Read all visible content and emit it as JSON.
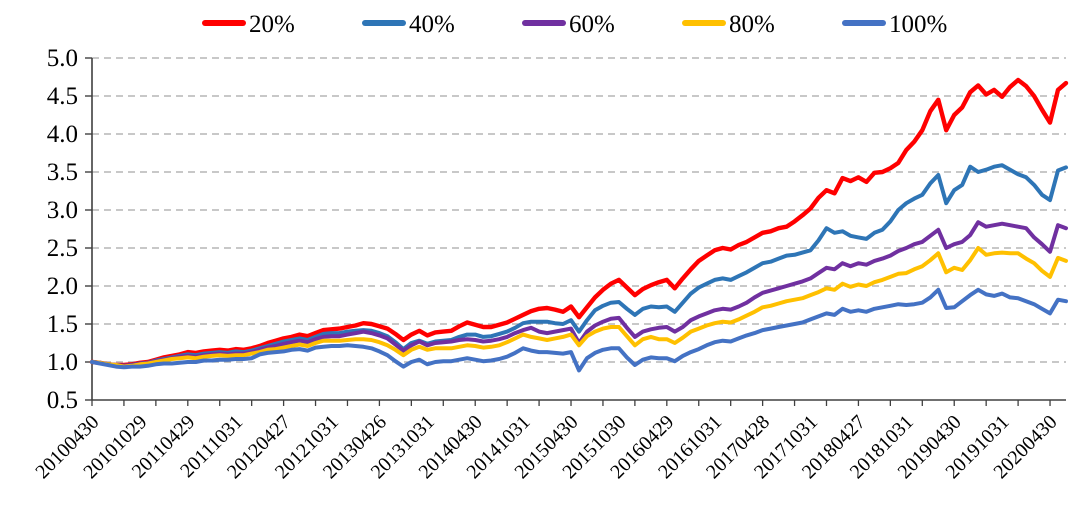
{
  "chart_data": {
    "type": "line",
    "title": "",
    "xlabel": "",
    "ylabel": "",
    "legend_position": "top",
    "grid": "horizontal-dashed",
    "grid_color": "#a6a6a6",
    "axis_color": "#404040",
    "ylim": [
      0.5,
      5.0
    ],
    "y_tick_labels": [
      "5.0",
      "4.5",
      "4.0",
      "3.5",
      "3.0",
      "2.5",
      "2.0",
      "1.5",
      "1.0",
      "0.5"
    ],
    "x_categories": [
      "20100430",
      "20101029",
      "20110429",
      "20111031",
      "20120427",
      "20121031",
      "20130426",
      "20131031",
      "20140430",
      "20141031",
      "20150430",
      "20151030",
      "20160429",
      "20161031",
      "20170428",
      "20171031",
      "20180427",
      "20181031",
      "20190430",
      "20191031",
      "20200430"
    ],
    "x_label_interval": 6,
    "x_tick_interval": 4,
    "n_points": 123,
    "series": [
      {
        "name": "20%",
        "color": "#FF0000",
        "values": [
          1.0,
          0.99,
          0.97,
          0.96,
          0.96,
          0.97,
          0.99,
          1.0,
          1.03,
          1.06,
          1.08,
          1.1,
          1.13,
          1.12,
          1.14,
          1.15,
          1.16,
          1.15,
          1.17,
          1.16,
          1.18,
          1.21,
          1.25,
          1.28,
          1.31,
          1.33,
          1.36,
          1.34,
          1.38,
          1.42,
          1.43,
          1.44,
          1.46,
          1.48,
          1.51,
          1.5,
          1.47,
          1.44,
          1.37,
          1.29,
          1.36,
          1.41,
          1.35,
          1.39,
          1.4,
          1.41,
          1.47,
          1.52,
          1.49,
          1.46,
          1.46,
          1.49,
          1.52,
          1.57,
          1.62,
          1.67,
          1.7,
          1.71,
          1.69,
          1.66,
          1.73,
          1.59,
          1.72,
          1.85,
          1.95,
          2.03,
          2.08,
          1.98,
          1.88,
          1.96,
          2.01,
          2.05,
          2.08,
          1.97,
          2.1,
          2.22,
          2.33,
          2.4,
          2.47,
          2.5,
          2.48,
          2.54,
          2.58,
          2.64,
          2.7,
          2.72,
          2.76,
          2.78,
          2.85,
          2.93,
          3.02,
          3.16,
          3.26,
          3.22,
          3.42,
          3.38,
          3.43,
          3.37,
          3.49,
          3.5,
          3.55,
          3.62,
          3.79,
          3.9,
          4.05,
          4.3,
          4.45,
          4.05,
          4.25,
          4.35,
          4.55,
          4.64,
          4.52,
          4.58,
          4.49,
          4.62,
          4.71,
          4.63,
          4.5,
          4.32,
          4.15,
          4.58,
          4.67
        ]
      },
      {
        "name": "40%",
        "color": "#2E75B6",
        "values": [
          1.0,
          0.99,
          0.97,
          0.96,
          0.95,
          0.96,
          0.98,
          0.99,
          1.02,
          1.04,
          1.06,
          1.08,
          1.1,
          1.09,
          1.11,
          1.12,
          1.13,
          1.12,
          1.14,
          1.13,
          1.15,
          1.18,
          1.21,
          1.24,
          1.27,
          1.29,
          1.31,
          1.29,
          1.33,
          1.37,
          1.38,
          1.38,
          1.4,
          1.41,
          1.42,
          1.41,
          1.38,
          1.34,
          1.26,
          1.17,
          1.25,
          1.28,
          1.24,
          1.27,
          1.28,
          1.29,
          1.33,
          1.36,
          1.36,
          1.33,
          1.34,
          1.37,
          1.4,
          1.45,
          1.51,
          1.53,
          1.53,
          1.53,
          1.51,
          1.5,
          1.55,
          1.4,
          1.55,
          1.68,
          1.74,
          1.78,
          1.79,
          1.7,
          1.62,
          1.7,
          1.73,
          1.72,
          1.73,
          1.66,
          1.78,
          1.9,
          1.98,
          2.03,
          2.08,
          2.1,
          2.08,
          2.13,
          2.18,
          2.24,
          2.3,
          2.32,
          2.36,
          2.4,
          2.41,
          2.44,
          2.47,
          2.6,
          2.76,
          2.7,
          2.72,
          2.66,
          2.64,
          2.62,
          2.7,
          2.74,
          2.85,
          3.0,
          3.09,
          3.15,
          3.2,
          3.35,
          3.46,
          3.09,
          3.26,
          3.33,
          3.57,
          3.5,
          3.53,
          3.57,
          3.59,
          3.53,
          3.47,
          3.43,
          3.33,
          3.2,
          3.13,
          3.52,
          3.56
        ]
      },
      {
        "name": "60%",
        "color": "#7030A0",
        "values": [
          1.0,
          0.99,
          0.97,
          0.96,
          0.95,
          0.96,
          0.98,
          0.99,
          1.01,
          1.03,
          1.05,
          1.07,
          1.08,
          1.07,
          1.09,
          1.1,
          1.11,
          1.1,
          1.11,
          1.11,
          1.13,
          1.16,
          1.19,
          1.21,
          1.24,
          1.26,
          1.28,
          1.26,
          1.3,
          1.33,
          1.34,
          1.34,
          1.36,
          1.38,
          1.4,
          1.38,
          1.35,
          1.31,
          1.23,
          1.15,
          1.22,
          1.27,
          1.22,
          1.25,
          1.26,
          1.27,
          1.29,
          1.3,
          1.29,
          1.27,
          1.28,
          1.3,
          1.33,
          1.38,
          1.42,
          1.45,
          1.4,
          1.38,
          1.4,
          1.42,
          1.44,
          1.25,
          1.4,
          1.48,
          1.53,
          1.57,
          1.58,
          1.45,
          1.33,
          1.4,
          1.43,
          1.45,
          1.46,
          1.4,
          1.46,
          1.55,
          1.6,
          1.64,
          1.68,
          1.7,
          1.69,
          1.73,
          1.78,
          1.85,
          1.91,
          1.94,
          1.97,
          2.0,
          2.03,
          2.06,
          2.1,
          2.17,
          2.24,
          2.22,
          2.3,
          2.26,
          2.3,
          2.28,
          2.33,
          2.36,
          2.4,
          2.46,
          2.5,
          2.55,
          2.58,
          2.66,
          2.74,
          2.5,
          2.55,
          2.58,
          2.67,
          2.84,
          2.78,
          2.8,
          2.82,
          2.8,
          2.78,
          2.76,
          2.64,
          2.55,
          2.45,
          2.8,
          2.76
        ]
      },
      {
        "name": "80%",
        "color": "#FFC000",
        "values": [
          1.0,
          0.99,
          0.97,
          0.96,
          0.94,
          0.95,
          0.97,
          0.98,
          1.0,
          1.02,
          1.04,
          1.05,
          1.06,
          1.05,
          1.07,
          1.08,
          1.09,
          1.08,
          1.09,
          1.09,
          1.11,
          1.13,
          1.16,
          1.17,
          1.19,
          1.21,
          1.23,
          1.21,
          1.25,
          1.28,
          1.28,
          1.28,
          1.29,
          1.3,
          1.3,
          1.29,
          1.26,
          1.22,
          1.16,
          1.09,
          1.16,
          1.2,
          1.16,
          1.18,
          1.18,
          1.18,
          1.2,
          1.22,
          1.21,
          1.19,
          1.2,
          1.22,
          1.26,
          1.31,
          1.36,
          1.33,
          1.31,
          1.29,
          1.31,
          1.33,
          1.36,
          1.22,
          1.34,
          1.4,
          1.44,
          1.46,
          1.46,
          1.34,
          1.22,
          1.3,
          1.33,
          1.3,
          1.3,
          1.25,
          1.32,
          1.4,
          1.44,
          1.48,
          1.51,
          1.53,
          1.52,
          1.56,
          1.61,
          1.66,
          1.72,
          1.74,
          1.77,
          1.8,
          1.82,
          1.84,
          1.88,
          1.92,
          1.97,
          1.95,
          2.03,
          1.99,
          2.02,
          2.0,
          2.05,
          2.08,
          2.12,
          2.16,
          2.17,
          2.22,
          2.26,
          2.34,
          2.43,
          2.18,
          2.24,
          2.21,
          2.34,
          2.5,
          2.41,
          2.43,
          2.44,
          2.43,
          2.43,
          2.36,
          2.3,
          2.2,
          2.12,
          2.37,
          2.33
        ]
      },
      {
        "name": "100%",
        "color": "#4472C4",
        "values": [
          1.0,
          0.98,
          0.96,
          0.94,
          0.93,
          0.94,
          0.94,
          0.95,
          0.97,
          0.98,
          0.98,
          0.99,
          1.0,
          1.0,
          1.02,
          1.02,
          1.03,
          1.03,
          1.04,
          1.04,
          1.05,
          1.1,
          1.12,
          1.13,
          1.14,
          1.16,
          1.17,
          1.15,
          1.19,
          1.2,
          1.21,
          1.21,
          1.22,
          1.21,
          1.2,
          1.18,
          1.14,
          1.09,
          1.01,
          0.94,
          1.0,
          1.03,
          0.97,
          1.0,
          1.01,
          1.01,
          1.03,
          1.05,
          1.03,
          1.01,
          1.02,
          1.04,
          1.07,
          1.12,
          1.18,
          1.15,
          1.13,
          1.13,
          1.12,
          1.11,
          1.13,
          0.89,
          1.05,
          1.12,
          1.16,
          1.18,
          1.18,
          1.06,
          0.96,
          1.03,
          1.06,
          1.05,
          1.05,
          1.01,
          1.08,
          1.13,
          1.17,
          1.22,
          1.26,
          1.28,
          1.27,
          1.31,
          1.35,
          1.38,
          1.42,
          1.44,
          1.46,
          1.48,
          1.5,
          1.52,
          1.56,
          1.6,
          1.64,
          1.62,
          1.7,
          1.66,
          1.68,
          1.66,
          1.7,
          1.72,
          1.74,
          1.76,
          1.75,
          1.76,
          1.78,
          1.85,
          1.95,
          1.71,
          1.72,
          1.8,
          1.88,
          1.95,
          1.89,
          1.87,
          1.9,
          1.85,
          1.84,
          1.8,
          1.76,
          1.7,
          1.64,
          1.82,
          1.8
        ]
      }
    ]
  }
}
